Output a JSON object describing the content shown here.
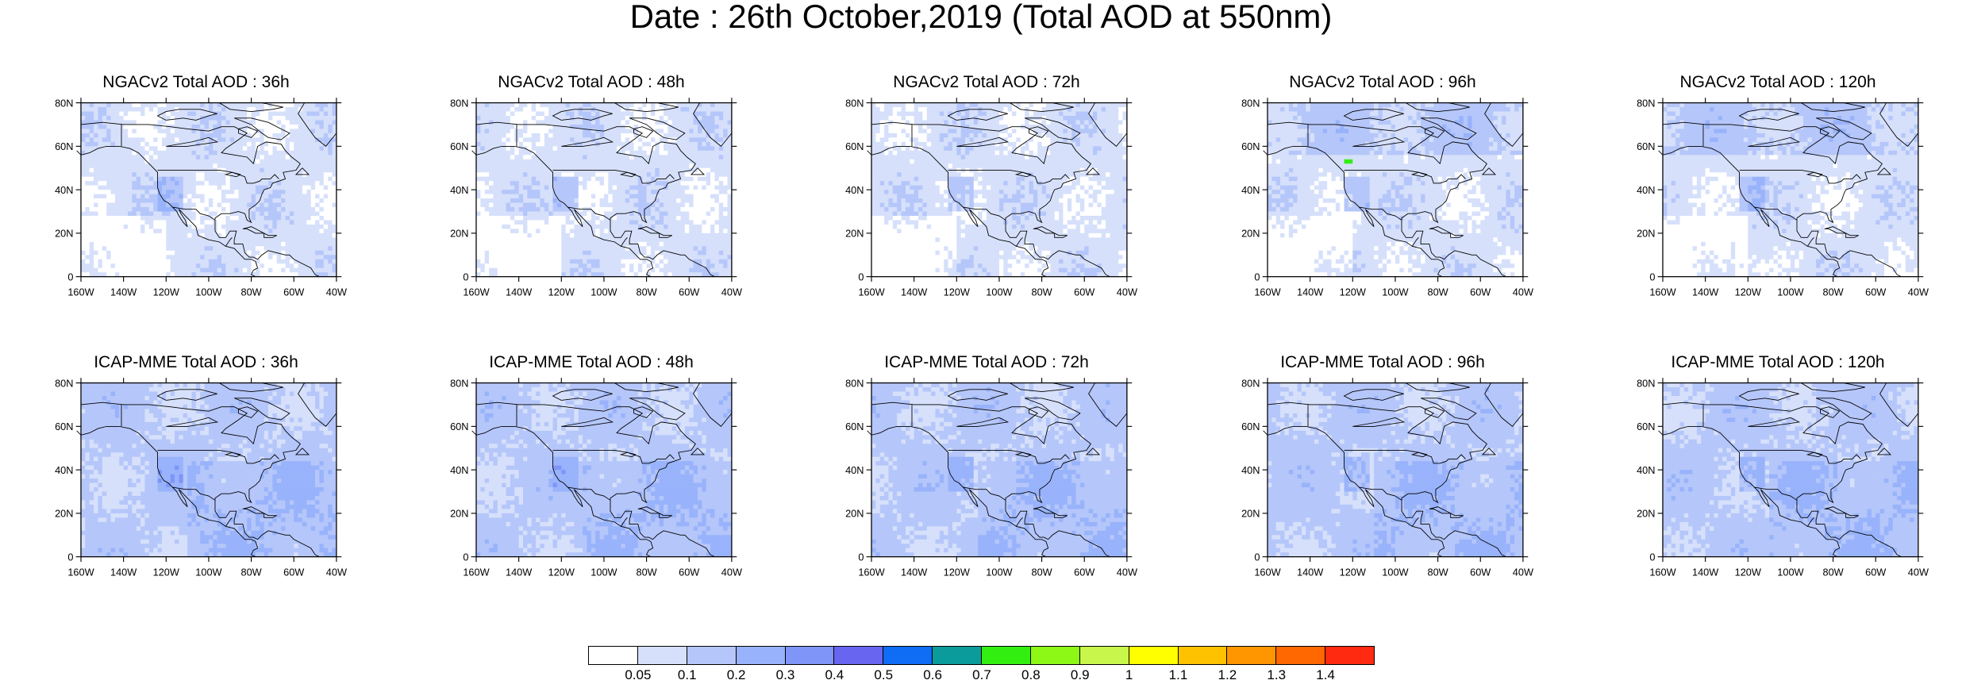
{
  "title": "Date : 26th October,2019 (Total AOD at 550nm)",
  "chart_data": {
    "type": "heatmap",
    "description_rows": [
      "NGACv2",
      "ICAP-MME"
    ],
    "panels": [
      {
        "title": "NGACv2 Total AOD : 36h",
        "model": "NGACv2",
        "lead": "36h"
      },
      {
        "title": "NGACv2 Total AOD : 48h",
        "model": "NGACv2",
        "lead": "48h"
      },
      {
        "title": "NGACv2 Total AOD : 72h",
        "model": "NGACv2",
        "lead": "72h"
      },
      {
        "title": "NGACv2 Total AOD : 96h",
        "model": "NGACv2",
        "lead": "96h"
      },
      {
        "title": "NGACv2 Total AOD : 120h",
        "model": "NGACv2",
        "lead": "120h"
      },
      {
        "title": "ICAP-MME Total AOD : 36h",
        "model": "ICAP-MME",
        "lead": "36h"
      },
      {
        "title": "ICAP-MME Total AOD : 48h",
        "model": "ICAP-MME",
        "lead": "48h"
      },
      {
        "title": "ICAP-MME Total AOD : 72h",
        "model": "ICAP-MME",
        "lead": "72h"
      },
      {
        "title": "ICAP-MME Total AOD : 96h",
        "model": "ICAP-MME",
        "lead": "96h"
      },
      {
        "title": "ICAP-MME Total AOD : 120h",
        "model": "ICAP-MME",
        "lead": "120h"
      }
    ],
    "x_ticks": [
      "160W",
      "140W",
      "120W",
      "100W",
      "80W",
      "60W",
      "40W"
    ],
    "x_range": [
      -160,
      -40
    ],
    "y_ticks": [
      "0",
      "20N",
      "40N",
      "60N",
      "80N"
    ],
    "y_range": [
      0,
      80
    ],
    "colorbar": {
      "levels": [
        "0.05",
        "0.1",
        "0.2",
        "0.3",
        "0.4",
        "0.5",
        "0.6",
        "0.7",
        "0.8",
        "0.9",
        "1",
        "1.1",
        "1.2",
        "1.3",
        "1.4"
      ],
      "colors": [
        "#ffffff",
        "#d6e0fb",
        "#b5c6fa",
        "#98b3fb",
        "#7f95f8",
        "#6866f0",
        "#0f6cf5",
        "#0c9b9b",
        "#33ee11",
        "#8df716",
        "#c8f64b",
        "#ffff00",
        "#ffc200",
        "#ff9600",
        "#ff6700",
        "#ff2a10"
      ]
    }
  }
}
